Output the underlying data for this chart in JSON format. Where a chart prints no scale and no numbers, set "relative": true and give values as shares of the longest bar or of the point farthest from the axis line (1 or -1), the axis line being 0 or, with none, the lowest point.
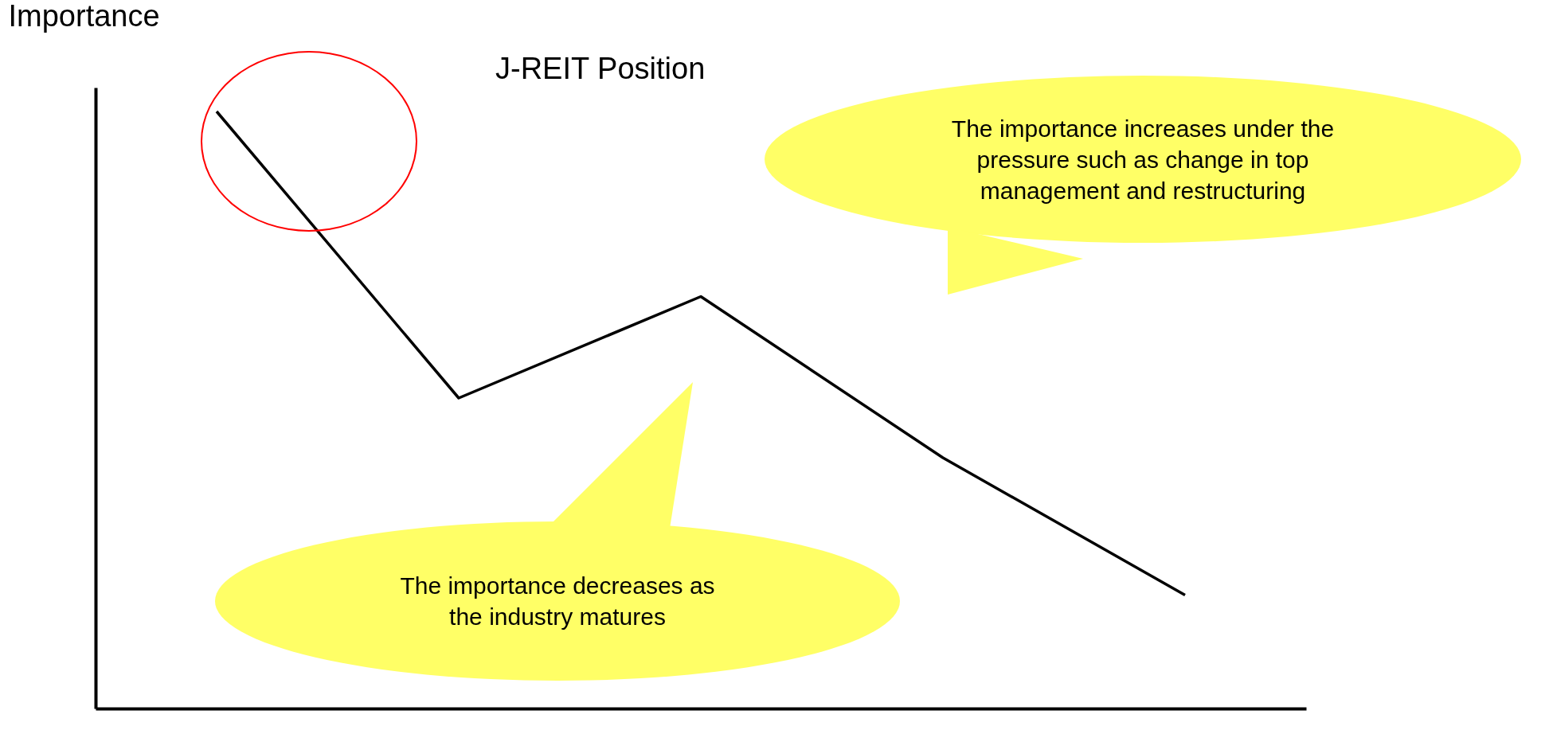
{
  "chart_data": {
    "type": "line",
    "relative": true,
    "ylabel": "Importance",
    "categories": [
      null,
      null,
      null,
      null,
      null
    ],
    "series": [
      {
        "color": "#000000",
        "values": [
          1,
          0.52,
          0.69,
          0.42,
          0.19
        ]
      }
    ],
    "grid": false,
    "marker": "none",
    "line_style": "solid",
    "annotations": [
      "J-REIT Position",
      "The importance increases under the pressure such as change in top management and restructuring",
      "The importance decreases as the industry matures"
    ]
  }
}
